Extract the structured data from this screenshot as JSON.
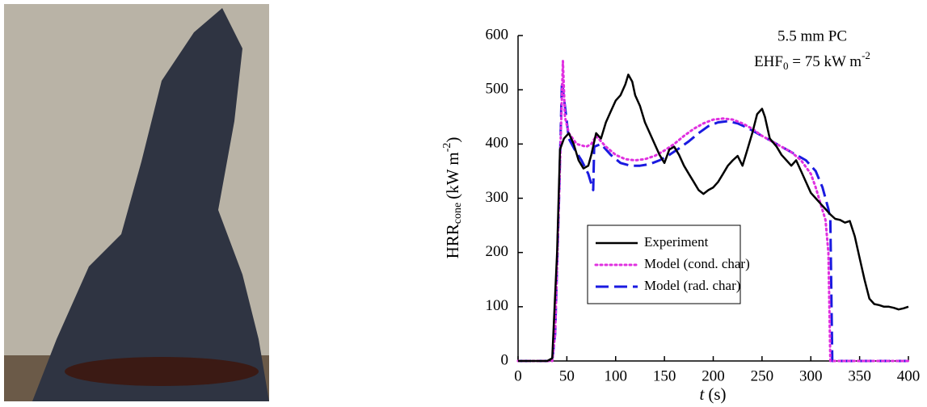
{
  "chart_data": {
    "type": "line",
    "ylabel": {
      "main": "HRR",
      "sub": "cone",
      "unit": "(kW m",
      "sup": "-2",
      "end": ")"
    },
    "xlabel": {
      "var": "t",
      "unit": "(s)"
    },
    "annotation": {
      "line1": "5.5 mm PC",
      "main": "EHF",
      "sub": "0",
      "rest": " = 75 kW m",
      "sup": "-2"
    },
    "xlim": [
      0,
      400
    ],
    "xticks": [
      0,
      50,
      100,
      150,
      200,
      250,
      300,
      350,
      400
    ],
    "ylim": [
      0,
      600
    ],
    "yticks": [
      0,
      100,
      200,
      300,
      400,
      500,
      600
    ],
    "legend": "lower-left",
    "series": [
      {
        "name": "Experiment",
        "color": "#000000",
        "style": "solid",
        "x": [
          0,
          30,
          35,
          40,
          43,
          47,
          52,
          57,
          62,
          67,
          72,
          75,
          80,
          85,
          90,
          95,
          100,
          105,
          110,
          113,
          117,
          120,
          125,
          130,
          135,
          140,
          145,
          150,
          155,
          160,
          165,
          170,
          175,
          180,
          185,
          190,
          195,
          200,
          205,
          210,
          215,
          220,
          225,
          230,
          235,
          240,
          245,
          250,
          253,
          258,
          265,
          270,
          275,
          280,
          285,
          290,
          295,
          300,
          305,
          310,
          315,
          320,
          325,
          330,
          335,
          340,
          345,
          350,
          355,
          360,
          365,
          370,
          375,
          380,
          385,
          390,
          395,
          400
        ],
        "values": [
          0,
          0,
          5,
          200,
          390,
          410,
          420,
          400,
          370,
          355,
          360,
          380,
          420,
          410,
          440,
          460,
          480,
          490,
          510,
          528,
          515,
          490,
          470,
          440,
          420,
          400,
          380,
          365,
          390,
          395,
          380,
          360,
          345,
          330,
          315,
          308,
          315,
          320,
          330,
          345,
          360,
          370,
          378,
          360,
          390,
          420,
          455,
          465,
          450,
          410,
          395,
          380,
          370,
          360,
          370,
          350,
          330,
          310,
          300,
          290,
          280,
          270,
          262,
          260,
          255,
          258,
          230,
          190,
          150,
          115,
          105,
          103,
          100,
          100,
          98,
          95,
          97,
          100
        ]
      },
      {
        "name": "Model (cond. char)",
        "color": "#e030e0",
        "style": "dotted",
        "x": [
          0,
          35,
          38,
          42,
          46,
          48,
          52,
          60,
          70,
          75,
          80,
          90,
          100,
          110,
          120,
          130,
          140,
          150,
          160,
          170,
          180,
          190,
          200,
          210,
          220,
          230,
          240,
          250,
          260,
          270,
          280,
          290,
          300,
          305,
          310,
          315,
          318,
          320,
          400
        ],
        "values": [
          0,
          0,
          50,
          300,
          553,
          450,
          420,
          400,
          395,
          400,
          415,
          395,
          380,
          372,
          370,
          372,
          378,
          388,
          400,
          415,
          428,
          438,
          445,
          447,
          445,
          438,
          428,
          415,
          405,
          395,
          385,
          370,
          345,
          320,
          290,
          260,
          200,
          0,
          0
        ]
      },
      {
        "name": "Model (rad. char)",
        "color": "#1a1ae0",
        "style": "dashed",
        "x": [
          0,
          35,
          38,
          42,
          45,
          48,
          52,
          58,
          65,
          72,
          77,
          78,
          85,
          95,
          105,
          115,
          125,
          135,
          145,
          155,
          165,
          175,
          185,
          195,
          205,
          215,
          225,
          235,
          245,
          255,
          265,
          275,
          285,
          295,
          305,
          312,
          318,
          320,
          322,
          400
        ],
        "values": [
          0,
          0,
          50,
          300,
          515,
          470,
          410,
          390,
          370,
          345,
          315,
          395,
          400,
          380,
          365,
          360,
          360,
          363,
          370,
          380,
          392,
          405,
          420,
          433,
          440,
          442,
          438,
          430,
          420,
          410,
          400,
          390,
          380,
          370,
          350,
          320,
          280,
          260,
          0,
          0
        ]
      }
    ]
  }
}
